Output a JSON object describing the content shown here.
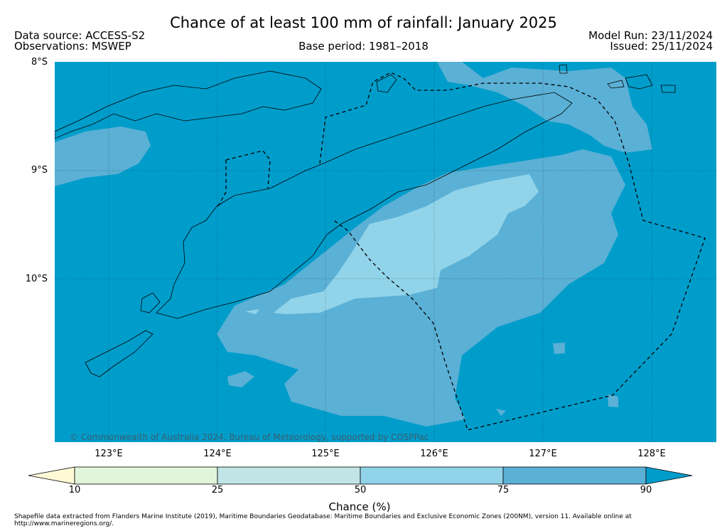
{
  "title": "Chance of at least 100 mm of rainfall: January 2025",
  "data_source": "Data source: ACCESS-S2",
  "observations": "Observations: MSWEP",
  "base_period": "Base period: 1981–2018",
  "model_run": "Model Run: 23/11/2024",
  "issued": "Issued: 25/11/2024",
  "lat_labels": [
    "8°S",
    "9°S",
    "10°S"
  ],
  "lon_labels": [
    "123°E",
    "124°E",
    "125°E",
    "126°E",
    "127°E",
    "128°E"
  ],
  "copyright": "© Commonwealth of Australia 2024, Bureau of Meteorology, supported by COSPPac",
  "colorbar": {
    "ticks": [
      "10",
      "25",
      "50",
      "75",
      "90"
    ],
    "title": "Chance (%)",
    "colors": {
      "below_10": "#fff9d6",
      "c10_25": "#e0f5da",
      "c25_50": "#c1e5e6",
      "c50_75": "#91d4ea",
      "c75_90": "#5bb0d5",
      "above_90": "#009dcb"
    }
  },
  "footer": "Shapefile data extracted from Flanders Marine Institute (2019), Maritime Boundaries Geodatabase: Maritime Boundaries and Exclusive Economic Zones (200NM), version 11. Available online at http://www.marineregions.org/."
}
